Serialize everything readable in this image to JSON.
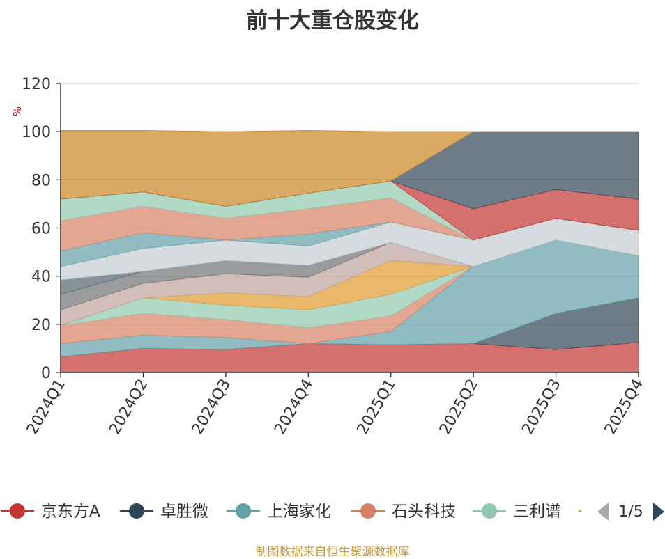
{
  "title": "前十大重仓股变化",
  "source": "制图数据来自恒生聚源数据库",
  "colors": {
    "axis": "#333333",
    "grid": "#cccccc",
    "unit_label": "#cc0000",
    "legend_text": "#333333",
    "legend_page_text": "#333333",
    "arrow_prev": "#aaaaaa",
    "arrow_next": "#2f4554",
    "source_text": "#c89b3c"
  },
  "chart_data": {
    "type": "area",
    "stacked": true,
    "title": "前十大重仓股变化",
    "ylabel": "%",
    "ylim": [
      0,
      120
    ],
    "yticks": [
      0,
      20,
      40,
      60,
      80,
      100,
      120
    ],
    "categories": [
      "2024Q1",
      "2024Q2",
      "2024Q3",
      "2024Q4",
      "2025Q1",
      "2025Q2",
      "2025Q3",
      "2025Q4"
    ],
    "grid": true,
    "legend": {
      "position": "bottom",
      "page_label": "1/5",
      "visible_entries": [
        "京东方A",
        "卓胜微",
        "上海家化",
        "石头科技",
        "三利谱"
      ]
    },
    "series": [
      {
        "name": "京东方A",
        "color": "#c23531",
        "values": [
          6.5,
          10,
          9.5,
          12,
          11.5,
          12,
          9.5,
          12.5
        ]
      },
      {
        "name": "卓胜微",
        "color": "#2f4554",
        "values": [
          0,
          0,
          0,
          0,
          0,
          0,
          15,
          18.5
        ]
      },
      {
        "name": "上海家化",
        "color": "#61a0a8",
        "values": [
          5.5,
          5.5,
          5,
          0,
          5.5,
          32,
          30.5,
          17.5
        ]
      },
      {
        "name": "石头科技",
        "color": "#d48265",
        "values": [
          7.5,
          9,
          7.5,
          6.5,
          6.5,
          0,
          0,
          0
        ]
      },
      {
        "name": "三利谱",
        "color": "#91c7ae",
        "values": [
          0,
          6.5,
          6,
          7.5,
          9,
          0,
          0,
          0
        ]
      },
      {
        "color": "#e19a2e",
        "values": [
          0,
          0,
          5,
          5.5,
          14,
          0,
          0,
          0
        ]
      },
      {
        "color": "#ca8622",
        "values": [
          0,
          0,
          0,
          0,
          0,
          0,
          0,
          0
        ]
      },
      {
        "color": "#bda29a",
        "values": [
          6.5,
          6,
          8,
          8,
          7.5,
          0,
          0,
          0
        ]
      },
      {
        "color": "#6e7074",
        "values": [
          6.5,
          5,
          5.5,
          5,
          0,
          0,
          0,
          0
        ]
      },
      {
        "color": "#546570",
        "values": [
          6,
          0,
          0,
          0,
          0,
          0,
          0,
          0
        ]
      },
      {
        "color": "#c4ccd3",
        "values": [
          5.5,
          9.5,
          8.5,
          8,
          8.5,
          11,
          9,
          10.5
        ]
      },
      {
        "color": "#61a0a8",
        "values": [
          6.5,
          6.5,
          0,
          5,
          0,
          0,
          0,
          0
        ]
      },
      {
        "color": "#d48265",
        "values": [
          12.5,
          11,
          9,
          10.5,
          10,
          0,
          0,
          0
        ]
      },
      {
        "color": "#91c7ae",
        "values": [
          9,
          6,
          5,
          6.5,
          7,
          0,
          0,
          0
        ]
      },
      {
        "color": "#749f83",
        "values": [
          0,
          0,
          0,
          0,
          0,
          0,
          0,
          0
        ]
      },
      {
        "color": "#c23531",
        "values": [
          0,
          0,
          0,
          0,
          0,
          13,
          12,
          13
        ]
      },
      {
        "color": "#2f4554",
        "values": [
          0,
          0,
          0,
          0,
          0,
          32,
          24,
          28
        ]
      },
      {
        "color": "#ca8622",
        "values": [
          28.5,
          25.5,
          31,
          26,
          20.5,
          0,
          0,
          0
        ]
      }
    ]
  }
}
